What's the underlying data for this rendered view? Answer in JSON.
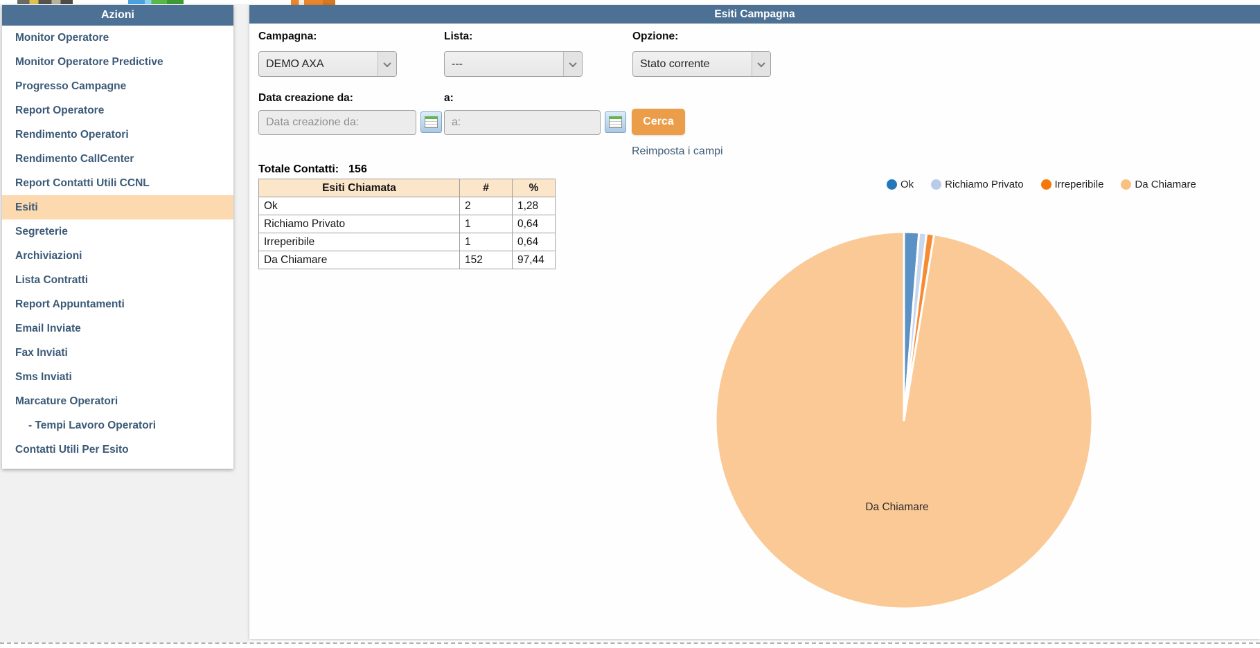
{
  "sidebar": {
    "title": "Azioni",
    "items": [
      {
        "label": "Monitor Operatore"
      },
      {
        "label": "Monitor Operatore Predictive"
      },
      {
        "label": "Progresso Campagne"
      },
      {
        "label": "Report Operatore"
      },
      {
        "label": "Rendimento Operatori"
      },
      {
        "label": "Rendimento CallCenter"
      },
      {
        "label": "Report Contatti Utili CCNL"
      },
      {
        "label": "Esiti",
        "active": true
      },
      {
        "label": "Segreterie"
      },
      {
        "label": "Archiviazioni"
      },
      {
        "label": "Lista Contratti"
      },
      {
        "label": "Report Appuntamenti"
      },
      {
        "label": "Email Inviate"
      },
      {
        "label": "Fax Inviati"
      },
      {
        "label": "Sms Inviati"
      },
      {
        "label": "Marcature Operatori"
      },
      {
        "label": "- Tempi Lavoro Operatori",
        "indent": true
      },
      {
        "label": "Contatti Utili Per Esito"
      }
    ]
  },
  "panel": {
    "title": "Esiti Campagna"
  },
  "form": {
    "campagna_label": "Campagna:",
    "campagna_value": "DEMO AXA",
    "lista_label": "Lista:",
    "lista_value": "---",
    "opzione_label": "Opzione:",
    "opzione_value": "Stato corrente",
    "data_da_label": "Data creazione da:",
    "data_da_placeholder": "Data creazione da:",
    "a_label": "a:",
    "a_placeholder": "a:",
    "cerca_label": "Cerca",
    "reset_label": "Reimposta i campi"
  },
  "totals": {
    "label": "Totale Contatti:",
    "value": "156"
  },
  "table": {
    "headers": [
      "Esiti Chiamata",
      "#",
      "%"
    ],
    "rows": [
      [
        "Ok",
        "2",
        "1,28"
      ],
      [
        "Richiamo Privato",
        "1",
        "0,64"
      ],
      [
        "Irreperibile",
        "1",
        "0,64"
      ],
      [
        "Da Chiamare",
        "152",
        "97,44"
      ]
    ]
  },
  "chart_data": {
    "type": "pie",
    "title": "",
    "labels": [
      "Ok",
      "Richiamo Privato",
      "Irreperibile",
      "Da Chiamare"
    ],
    "values": [
      2,
      1,
      1,
      152
    ],
    "percents": [
      1.28,
      0.64,
      0.64,
      97.44
    ],
    "total": 156,
    "slice_colors": [
      "#5b91c4",
      "#c9d7ee",
      "#f78b33",
      "#fbc995"
    ],
    "legend_colors": [
      "#2478b9",
      "#b9cbe7",
      "#f5780a",
      "#f9c081"
    ],
    "legend_position": "top",
    "direction": "clockwise",
    "start_angle_deg": 0,
    "inner_label": "Da Chiamare"
  },
  "colors": {
    "accent_bar": "#4d7195",
    "sidebar_highlight": "#fcd9ae",
    "button_orange": "#eb9d4a",
    "table_header_bg": "#fbe6ca",
    "link_text": "#3b5a77"
  }
}
